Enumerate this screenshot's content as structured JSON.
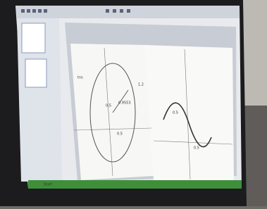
{
  "window": {
    "title": "tns"
  },
  "graph_left": {
    "labels": [
      "0.5",
      "0.5",
      "1.2",
      "0.9553"
    ]
  },
  "graph_right": {
    "labels": [
      "0.5",
      "0.5"
    ]
  },
  "taskbar": {
    "items": [
      "Start"
    ]
  }
}
